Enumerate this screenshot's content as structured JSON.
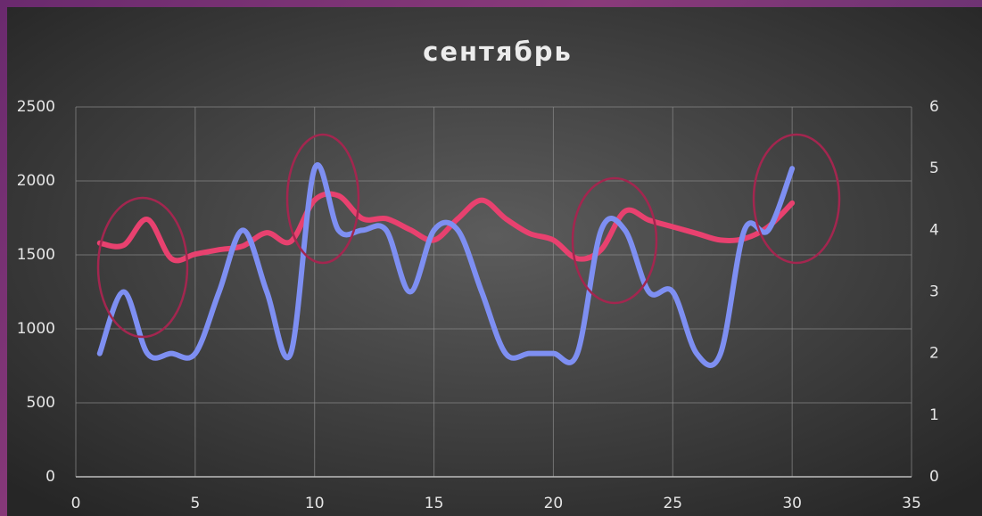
{
  "chart_data": {
    "type": "line",
    "title": "сентябрь",
    "x": [
      1,
      2,
      3,
      4,
      5,
      6,
      7,
      8,
      9,
      10,
      11,
      12,
      13,
      14,
      15,
      16,
      17,
      18,
      19,
      20,
      21,
      22,
      23,
      24,
      25,
      26,
      27,
      28,
      29,
      30
    ],
    "series": [
      {
        "color": "#e8416f",
        "values": [
          1580,
          1565,
          1740,
          1475,
          1505,
          1535,
          1560,
          1650,
          1590,
          1870,
          1900,
          1745,
          1745,
          1670,
          1600,
          1745,
          1870,
          1745,
          1645,
          1600,
          1475,
          1535,
          1795,
          1735,
          1690,
          1645,
          1600,
          1610,
          1690,
          1850
        ]
      },
      {
        "color": "#7e8ff2",
        "axis": "y2",
        "values": [
          2,
          3,
          2,
          2,
          2,
          3,
          4,
          3,
          2,
          5,
          4,
          4,
          4,
          3,
          4,
          4,
          3,
          2,
          2,
          2,
          2,
          4,
          4,
          3,
          3,
          2,
          2,
          4,
          4,
          5
        ]
      }
    ],
    "xlim": [
      0,
      35
    ],
    "xticks": [
      0,
      5,
      10,
      15,
      20,
      25,
      30,
      35
    ],
    "ylim": [
      0,
      2500
    ],
    "yticks": [
      0,
      500,
      1000,
      1500,
      2000,
      2500
    ],
    "y2lim": [
      0,
      6
    ],
    "y2ticks": [
      0,
      1,
      2,
      3,
      4,
      5,
      6
    ],
    "grid": true,
    "smooth": true
  }
}
